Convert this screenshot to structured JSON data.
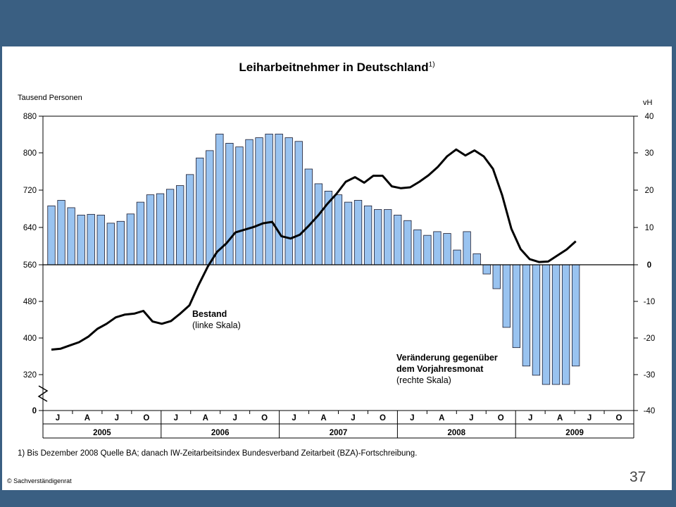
{
  "slide": {
    "page_number": "37",
    "copyright": "© Sachverständigenrat",
    "footnote": "1) Bis Dezember 2008 Quelle BA; danach IW-Zeitarbeitsindex Bundesverband Zeitarbeit (BZA)-Fortschreibung.",
    "colors": {
      "frame": "#3a5f82",
      "bar_fill": "#99c3f0",
      "bar_stroke": "#1a1a2e",
      "line": "#000000"
    }
  },
  "chart_data": {
    "type": "bar+line",
    "title": "Leiharbeitnehmer in Deutschland",
    "title_footnote_marker": "1)",
    "left_axis_label": "Tausend Personen",
    "right_axis_label": "vH",
    "left_ticks": [
      "880",
      "800",
      "720",
      "640",
      "560",
      "480",
      "400",
      "320",
      "0"
    ],
    "right_ticks": [
      "40",
      "30",
      "20",
      "10",
      "0",
      "-10",
      "-20",
      "-30",
      "-40"
    ],
    "left_axis_break": true,
    "month_labels": [
      "J",
      "A",
      "J",
      "O",
      "J",
      "A",
      "J",
      "O",
      "J",
      "A",
      "J",
      "O",
      "J",
      "A",
      "J",
      "O",
      "J",
      "A",
      "J",
      "O"
    ],
    "year_labels": [
      "2005",
      "2006",
      "2007",
      "2008",
      "2009"
    ],
    "series": [
      {
        "name": "Veränderung gegenüber dem Vorjahresmonat",
        "axis": "right",
        "kind": "bar",
        "label_lines": [
          "Veränderung gegenüber",
          "dem Vorjahresmonat",
          "(rechte Skala)"
        ],
        "values": [
          16,
          17.5,
          15.5,
          13.5,
          13.7,
          13.5,
          11.3,
          11.8,
          13.8,
          17,
          19,
          19.3,
          20.5,
          21.5,
          24.5,
          29,
          31,
          35.5,
          33,
          32,
          34,
          34.5,
          35.5,
          35.5,
          34.5,
          33.5,
          26,
          22,
          20,
          19,
          17,
          17.5,
          16,
          15,
          15,
          13.5,
          12,
          9.5,
          8,
          9,
          8.5,
          4,
          9,
          3,
          -2.5,
          -6.5,
          -17,
          -22.5,
          -27.5,
          -30,
          -32.5,
          -32.5,
          -32.5,
          -27.5
        ]
      },
      {
        "name": "Bestand",
        "axis": "left",
        "kind": "line",
        "label_lines": [
          "Bestand",
          "(linke Skala)"
        ],
        "values": [
          376,
          378,
          385,
          392,
          404,
          421,
          432,
          446,
          452,
          454,
          460,
          437,
          432,
          438,
          454,
          472,
          516,
          556,
          588,
          606,
          630,
          636,
          642,
          650,
          653,
          622,
          617,
          625,
          645,
          667,
          692,
          714,
          740,
          750,
          738,
          753,
          753,
          730,
          726,
          728,
          740,
          754,
          772,
          795,
          810,
          797,
          808,
          795,
          768,
          711,
          638,
          594,
          572,
          566,
          567,
          580,
          593,
          611
        ]
      }
    ]
  }
}
